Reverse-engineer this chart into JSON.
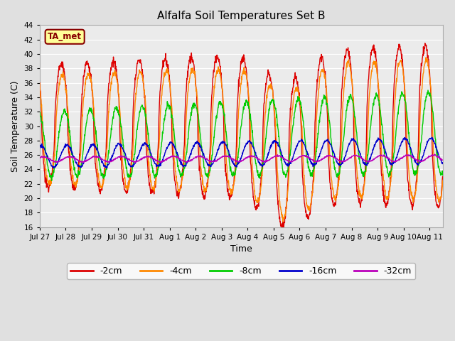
{
  "title": "Alfalfa Soil Temperatures Set B",
  "xlabel": "Time",
  "ylabel": "Soil Temperature (C)",
  "ylim": [
    16,
    44
  ],
  "yticks": [
    16,
    18,
    20,
    22,
    24,
    26,
    28,
    30,
    32,
    34,
    36,
    38,
    40,
    42,
    44
  ],
  "background_color": "#e0e0e0",
  "plot_bg_color": "#ebebeb",
  "grid_color": "#ffffff",
  "colors": {
    "-2cm": "#dd0000",
    "-4cm": "#ff8800",
    "-8cm": "#00cc00",
    "-16cm": "#0000cc",
    "-32cm": "#bb00bb"
  },
  "legend_labels": [
    "-2cm",
    "-4cm",
    "-8cm",
    "-16cm",
    "-32cm"
  ],
  "ta_met_box_color": "#ffff99",
  "ta_met_text_color": "#880000",
  "ta_met_border_color": "#880000",
  "n_days": 15.5,
  "title_fontsize": 11,
  "axis_label_fontsize": 9,
  "tick_fontsize": 7.5,
  "legend_fontsize": 9
}
